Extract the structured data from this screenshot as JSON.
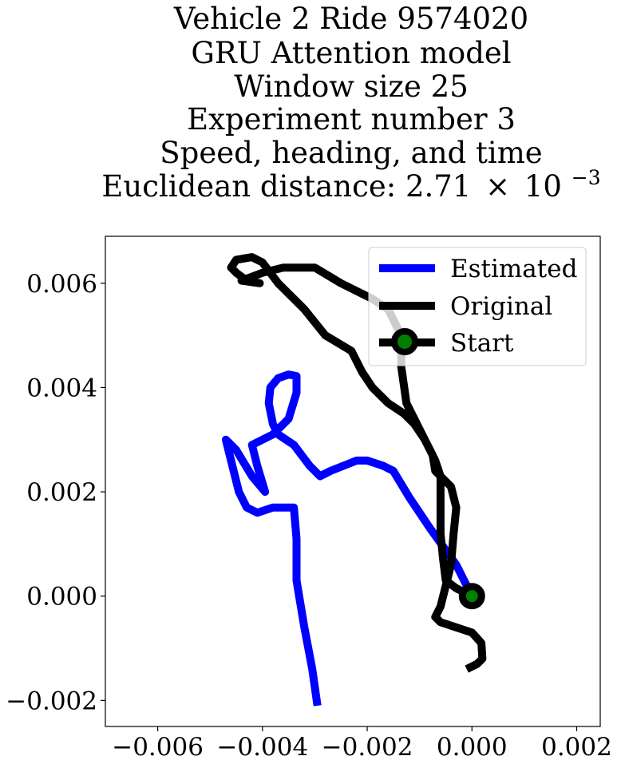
{
  "chart_data": {
    "type": "line",
    "title_lines": [
      "Vehicle 2 Ride 9574020",
      "GRU Attention model",
      "Window size 25",
      "Experiment number 3",
      "Speed, heading, and time"
    ],
    "title_distance_prefix": "Euclidean distance: 2.71",
    "title_distance_times": "×",
    "title_distance_base": "10",
    "title_distance_exp": "−3",
    "xlim": [
      -0.007,
      0.00245
    ],
    "ylim": [
      -0.0025,
      0.0069
    ],
    "x_ticks": [
      {
        "value": -0.006,
        "label": "−0.006"
      },
      {
        "value": -0.004,
        "label": "−0.004"
      },
      {
        "value": -0.002,
        "label": "−0.002"
      },
      {
        "value": 0.0,
        "label": "0.000"
      },
      {
        "value": 0.002,
        "label": "0.002"
      }
    ],
    "y_ticks": [
      {
        "value": -0.002,
        "label": "−0.002"
      },
      {
        "value": 0.0,
        "label": "0.000"
      },
      {
        "value": 0.002,
        "label": "0.002"
      },
      {
        "value": 0.004,
        "label": "0.004"
      },
      {
        "value": 0.006,
        "label": "0.006"
      }
    ],
    "legend_position": "top-right",
    "series": [
      {
        "name": "Estimated",
        "color": "#0000ff",
        "points": [
          [
            0.0,
            0.0
          ],
          [
            -0.0003,
            0.0006
          ],
          [
            -0.0008,
            0.0013
          ],
          [
            -0.0012,
            0.0019
          ],
          [
            -0.0015,
            0.0024
          ],
          [
            -0.0017,
            0.0025
          ],
          [
            -0.002,
            0.0026
          ],
          [
            -0.0022,
            0.0026
          ],
          [
            -0.0027,
            0.0024
          ],
          [
            -0.0029,
            0.0023
          ],
          [
            -0.0031,
            0.0025
          ],
          [
            -0.0034,
            0.0029
          ],
          [
            -0.0037,
            0.0031
          ],
          [
            -0.0038,
            0.0033
          ],
          [
            -0.00388,
            0.0037
          ],
          [
            -0.00385,
            0.004
          ],
          [
            -0.0037,
            0.00418
          ],
          [
            -0.0035,
            0.00425
          ],
          [
            -0.00335,
            0.00422
          ],
          [
            -0.00335,
            0.0039
          ],
          [
            -0.0035,
            0.0034
          ],
          [
            -0.0038,
            0.0031
          ],
          [
            -0.0042,
            0.0029
          ],
          [
            -0.0041,
            0.0025
          ],
          [
            -0.00395,
            0.002
          ],
          [
            -0.0042,
            0.0023
          ],
          [
            -0.0045,
            0.0028
          ],
          [
            -0.0047,
            0.003
          ],
          [
            -0.00455,
            0.0024
          ],
          [
            -0.00445,
            0.002
          ],
          [
            -0.0043,
            0.0017
          ],
          [
            -0.0041,
            0.0016
          ],
          [
            -0.0038,
            0.0017
          ],
          [
            -0.0034,
            0.0017
          ],
          [
            -0.00335,
            0.0011
          ],
          [
            -0.00335,
            0.0005
          ],
          [
            -0.00335,
            0.0003
          ],
          [
            -0.0032,
            -0.0006
          ],
          [
            -0.00305,
            -0.0014
          ],
          [
            -0.00295,
            -0.0021
          ]
        ]
      },
      {
        "name": "Original",
        "color": "#000000",
        "points": [
          [
            -0.0001,
            -0.0014
          ],
          [
            0.0001,
            -0.0013
          ],
          [
            0.0002,
            -0.0012
          ],
          [
            0.00018,
            -0.0009
          ],
          [
            0.0,
            -0.0007
          ],
          [
            -0.0003,
            -0.0006
          ],
          [
            -0.0006,
            -0.0005
          ],
          [
            -0.0007,
            -0.0004
          ],
          [
            -0.0006,
            -0.0002
          ],
          [
            -0.0005,
            0.0002
          ],
          [
            -0.0004,
            0.0006
          ],
          [
            -0.00035,
            0.0012
          ],
          [
            -0.0003,
            0.0017
          ],
          [
            -0.0004,
            0.0021
          ],
          [
            -0.0006,
            0.0023
          ],
          [
            -0.0007,
            0.0024
          ],
          [
            -0.00075,
            0.0027
          ],
          [
            -0.0009,
            0.003
          ],
          [
            -0.0011,
            0.0034
          ],
          [
            -0.00125,
            0.0037
          ],
          [
            -0.00135,
            0.0044
          ],
          [
            -0.00135,
            0.0048
          ],
          [
            -0.0014,
            0.0051
          ],
          [
            -0.0016,
            0.0055
          ],
          [
            -0.0019,
            0.0057
          ],
          [
            -0.0025,
            0.006
          ],
          [
            -0.003,
            0.0063
          ],
          [
            -0.0036,
            0.0063
          ],
          [
            -0.004,
            0.0062
          ],
          [
            -0.0044,
            0.00605
          ],
          [
            -0.00405,
            0.006
          ],
          [
            -0.0043,
            0.00605
          ],
          [
            -0.0045,
            0.0062
          ],
          [
            -0.0046,
            0.0063
          ],
          [
            -0.0045,
            0.00645
          ],
          [
            -0.0042,
            0.0065
          ],
          [
            -0.004,
            0.0064
          ],
          [
            -0.0037,
            0.006
          ],
          [
            -0.0032,
            0.0055
          ],
          [
            -0.0028,
            0.005
          ],
          [
            -0.0023,
            0.0047
          ],
          [
            -0.0021,
            0.0043
          ],
          [
            -0.0019,
            0.004
          ],
          [
            -0.0016,
            0.0037
          ],
          [
            -0.0013,
            0.0035
          ],
          [
            -0.0011,
            0.0033
          ],
          [
            -0.0009,
            0.003
          ],
          [
            -0.0008,
            0.0028
          ],
          [
            -0.0007,
            0.0026
          ],
          [
            -0.0006,
            0.0023
          ],
          [
            -0.0006,
            0.0018
          ],
          [
            -0.0006,
            0.0012
          ],
          [
            -0.00055,
            0.0007
          ],
          [
            -0.0005,
            0.0003
          ],
          [
            -0.0003,
            0.00015
          ],
          [
            0.0,
            0.0
          ]
        ]
      },
      {
        "name": "Start",
        "color": "#000000",
        "marker_fill": "#008000",
        "points": [
          [
            0.0,
            0.0
          ]
        ]
      }
    ]
  }
}
